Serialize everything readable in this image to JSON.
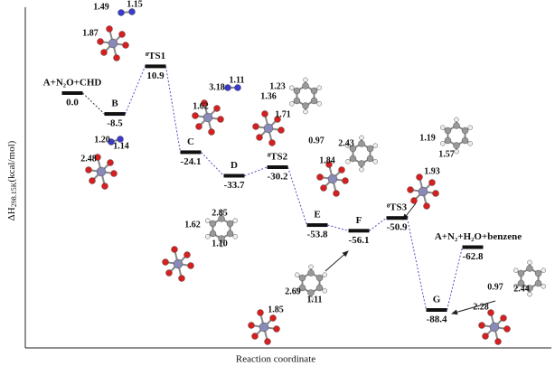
{
  "axes": {
    "y_label": {
      "symbol": "ΔH",
      "subscript": "298.15K",
      "unit": "(kcal/mol)"
    },
    "x_label": "Reaction coordinate"
  },
  "levels": [
    {
      "label": "A+N₂O+CHD",
      "energy": "0.0"
    },
    {
      "label": "B",
      "energy": "-8.5"
    },
    {
      "label": "⁸TS1",
      "energy": "10.9"
    },
    {
      "label": "C",
      "energy": "-24.1"
    },
    {
      "label": "D",
      "energy": "-33.7"
    },
    {
      "label": "⁸TS2",
      "energy": "-30.2"
    },
    {
      "label": "E",
      "energy": "-53.8"
    },
    {
      "label": "F",
      "energy": "-56.1"
    },
    {
      "label": "⁸TS3",
      "energy": "-50.9"
    },
    {
      "label": "G",
      "energy": "-88.4"
    },
    {
      "label": "A+N₂+H₂O+benzene",
      "energy": "-62.8"
    }
  ],
  "structures": [
    {
      "bond_lengths": [
        "1.49",
        "1.15",
        "1.87"
      ]
    },
    {
      "bond_lengths": [
        "1.20",
        "1.14",
        "2.48"
      ]
    },
    {
      "bond_lengths": [
        "3.18",
        "1.11",
        "1.62"
      ]
    },
    {
      "bond_lengths": [
        "1.23",
        "1.36",
        "1.71"
      ]
    },
    {
      "bond_lengths": [
        "0.97",
        "2.43",
        "1.84"
      ]
    },
    {
      "bond_lengths": [
        "2.85",
        "1.10",
        "1.62"
      ]
    },
    {
      "bond_lengths": [
        "2.69",
        "1.11",
        "1.85"
      ]
    },
    {
      "bond_lengths": [
        "1.19",
        "1.57",
        "1.93"
      ]
    },
    {
      "bond_lengths": [
        "0.97",
        "2.44",
        "2.28"
      ]
    }
  ]
}
